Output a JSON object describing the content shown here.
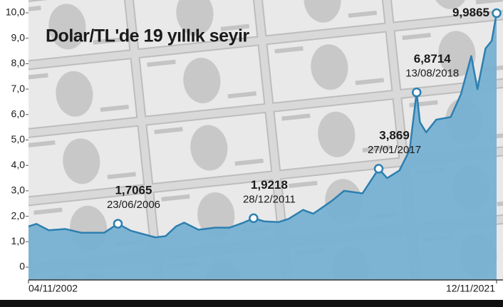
{
  "chart_data": {
    "type": "area",
    "title": "Dolar/TL'de 19 yıllık seyir",
    "x": [
      "04/11/2002",
      "01/03/2003",
      "01/09/2003",
      "01/05/2004",
      "01/01/2005",
      "01/12/2005",
      "23/06/2006",
      "01/01/2007",
      "01/07/2007",
      "01/01/2008",
      "01/06/2008",
      "01/11/2008",
      "01/03/2009",
      "01/10/2009",
      "01/06/2010",
      "01/01/2011",
      "01/08/2011",
      "28/12/2011",
      "01/06/2012",
      "01/01/2013",
      "01/06/2013",
      "01/01/2014",
      "01/06/2014",
      "01/03/2015",
      "01/09/2015",
      "01/06/2016",
      "27/01/2017",
      "01/06/2017",
      "01/12/2017",
      "01/05/2018",
      "13/08/2018",
      "01/10/2018",
      "01/01/2019",
      "01/06/2019",
      "01/01/2020",
      "01/06/2020",
      "01/11/2020",
      "01/02/2021",
      "01/06/2021",
      "01/09/2021",
      "12/11/2021"
    ],
    "series": [
      {
        "color": "#2d7fb0",
        "fill": "#78b1d2",
        "values": [
          1.6,
          1.7,
          1.45,
          1.5,
          1.35,
          1.35,
          1.7065,
          1.43,
          1.3,
          1.17,
          1.22,
          1.6,
          1.75,
          1.47,
          1.55,
          1.55,
          1.75,
          1.9218,
          1.8,
          1.77,
          1.9,
          2.25,
          2.1,
          2.6,
          3.0,
          2.9,
          3.869,
          3.5,
          3.8,
          4.6,
          6.8714,
          5.7,
          5.3,
          5.8,
          5.9,
          6.8,
          8.3,
          7.0,
          8.6,
          8.9,
          9.9865
        ],
        "value_labels": [
          null,
          null,
          null,
          null,
          null,
          null,
          "1,7065",
          null,
          null,
          null,
          null,
          null,
          null,
          null,
          null,
          null,
          null,
          "1,9218",
          null,
          null,
          null,
          null,
          null,
          null,
          null,
          null,
          "3,869",
          null,
          null,
          null,
          "6,8714",
          null,
          null,
          null,
          null,
          null,
          null,
          null,
          null,
          null,
          "9,9865"
        ]
      }
    ],
    "xlim": [
      "04/11/2002",
      "12/11/2021"
    ],
    "xticks": [
      "04/11/2002",
      "12/11/2021"
    ],
    "ylim": [
      0,
      10
    ],
    "yticks": [
      0,
      {
        "value": 1,
        "label": "1,0"
      },
      {
        "value": 2,
        "label": "2,0"
      },
      {
        "value": 3,
        "label": "3,0"
      },
      {
        "value": 4,
        "label": "4,0"
      },
      {
        "value": 5,
        "label": "5,0"
      },
      {
        "value": 6,
        "label": "6,0"
      },
      {
        "value": 7,
        "label": "7,0"
      },
      {
        "value": 8,
        "label": "8,0"
      },
      {
        "value": 9,
        "label": "9,0"
      },
      {
        "value": 10,
        "label": "10,0"
      }
    ]
  }
}
